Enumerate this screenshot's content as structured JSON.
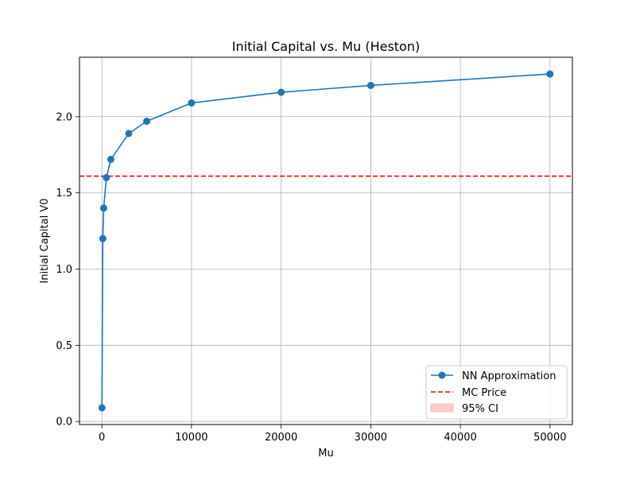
{
  "chart_data": {
    "type": "line",
    "title": "Initial Capital vs. Mu (Heston)",
    "xlabel": "Mu",
    "ylabel": "Initial Capital V0",
    "xlim": [
      -2500,
      52500
    ],
    "ylim": [
      -0.02,
      2.39
    ],
    "xticks": [
      0,
      10000,
      20000,
      30000,
      40000,
      50000
    ],
    "yticks": [
      0.0,
      0.5,
      1.0,
      1.5,
      2.0
    ],
    "grid": true,
    "legend_position": "lower-right",
    "series": [
      {
        "name": "NN Approximation",
        "color": "#1f77b4",
        "marker": "circle",
        "x": [
          10,
          100,
          200,
          500,
          1000,
          3000,
          5000,
          10000,
          20000,
          30000,
          50000
        ],
        "y": [
          0.09,
          1.2,
          1.4,
          1.6,
          1.72,
          1.89,
          1.97,
          2.09,
          2.16,
          2.205,
          2.28
        ]
      }
    ],
    "reference_line": {
      "name": "MC Price",
      "color": "#ff0000",
      "style": "dashed",
      "y": 1.61
    },
    "confidence_band": {
      "name": "95% CI",
      "color": "#ffcccc"
    }
  }
}
